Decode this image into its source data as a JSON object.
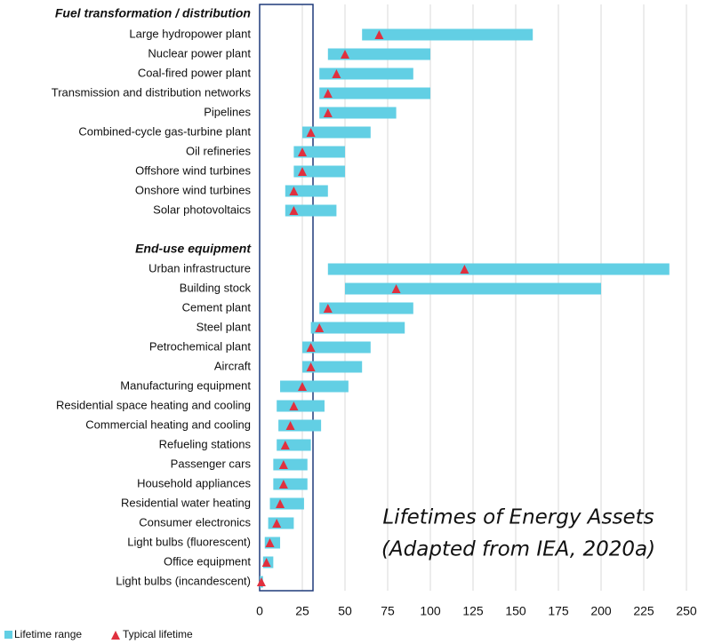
{
  "chart_data": {
    "type": "range_bar",
    "groups": [
      {
        "name": "Fuel transformation / distribution",
        "categories": [
          "Large hydropower plant",
          "Nuclear power plant",
          "Coal-fired power plant",
          "Transmission and distribution networks",
          "Pipelines",
          "Combined-cycle gas-turbine plant",
          "Oil refineries",
          "Offshore wind turbines",
          "Onshore wind turbines",
          "Solar photovoltaics"
        ],
        "low": [
          60,
          40,
          35,
          35,
          35,
          25,
          20,
          20,
          15,
          15
        ],
        "high": [
          160,
          100,
          90,
          100,
          80,
          65,
          50,
          50,
          40,
          45
        ],
        "typical": [
          70,
          50,
          45,
          40,
          40,
          30,
          25,
          25,
          20,
          20
        ]
      },
      {
        "name": "End-use equipment",
        "categories": [
          "Urban infrastructure",
          "Building stock",
          "Cement plant",
          "Steel plant",
          "Petrochemical plant",
          "Aircraft",
          "Manufacturing equipment",
          "Residential space heating and cooling",
          "Commercial heating and cooling",
          "Refueling stations",
          "Passenger cars",
          "Household appliances",
          "Residential water heating",
          "Consumer electronics",
          "Light bulbs (fluorescent)",
          "Office equipment",
          "Light bulbs (incandescent)"
        ],
        "low": [
          40,
          50,
          35,
          30,
          25,
          25,
          12,
          10,
          11,
          10,
          8,
          8,
          6,
          5,
          3,
          2,
          0
        ],
        "high": [
          240,
          200,
          90,
          85,
          65,
          60,
          52,
          38,
          36,
          30,
          28,
          28,
          26,
          20,
          12,
          8,
          2
        ],
        "typical": [
          120,
          80,
          40,
          35,
          30,
          30,
          25,
          20,
          18,
          15,
          14,
          14,
          12,
          10,
          6,
          4,
          1
        ]
      }
    ],
    "series": [
      {
        "name": "Lifetime range",
        "color": "#62cfe4"
      },
      {
        "name": "Typical lifetime",
        "color": "#e0303e"
      }
    ],
    "xlim": [
      0,
      250
    ],
    "xticks": [
      0,
      25,
      50,
      75,
      100,
      125,
      150,
      175,
      200,
      225,
      250
    ],
    "grid": true,
    "annotation": [
      "Lifetimes of Energy Assets",
      "(Adapted from IEA, 2020a)"
    ]
  }
}
